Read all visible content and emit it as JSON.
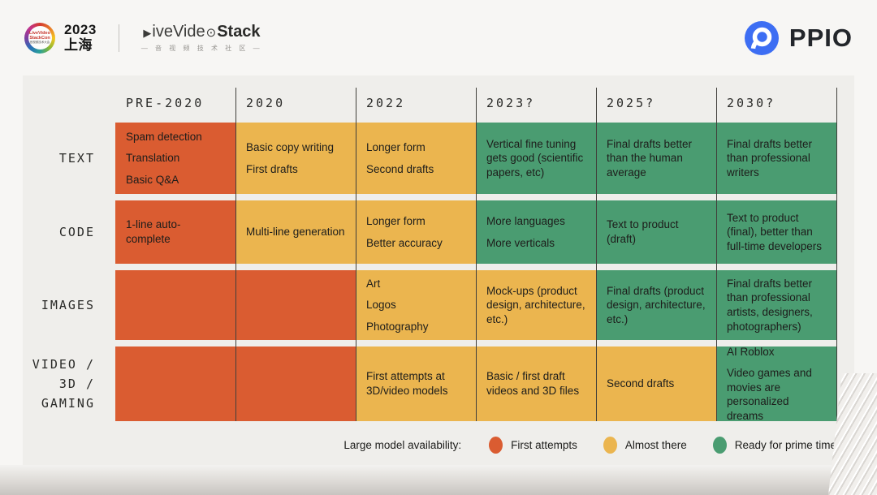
{
  "topbar": {
    "conference_badge": {
      "line1": "LiveVideo",
      "line2": "StackCon",
      "sub": "音视频技术大会"
    },
    "conference_year": "2023",
    "conference_city": "上海",
    "wordmark_play_icon": "▶",
    "wordmark_mid": "iveVide",
    "wordmark_o_icon": "⊙",
    "wordmark_bold": "Stack",
    "community_tagline": "— 音 视 频 技 术 社 区 —",
    "brand_name": "PPIO",
    "brand_color": "#3D6EF3"
  },
  "chart_data": {
    "type": "heatmap",
    "title": "Large model availability",
    "columns": [
      "PRE-2020",
      "2020",
      "2022",
      "2023?",
      "2025?",
      "2030?"
    ],
    "y_categories": [
      "TEXT",
      "CODE",
      "IMAGES",
      "VIDEO / 3D / GAMING"
    ],
    "status_colors": {
      "first_attempts": "#DA5C31",
      "almost_there": "#EBB54F",
      "prime_time": "#4A9C71"
    },
    "rows": [
      {
        "label_lines": [
          "TEXT"
        ],
        "cells": [
          {
            "status": "first_attempts",
            "lines": [
              "Spam detection",
              "Translation",
              "Basic Q&A"
            ]
          },
          {
            "status": "almost_there",
            "lines": [
              "Basic copy writing",
              "First drafts"
            ]
          },
          {
            "status": "almost_there",
            "lines": [
              "Longer form",
              "Second drafts"
            ]
          },
          {
            "status": "prime_time",
            "lines": [
              "Vertical fine tuning gets good (scientific papers, etc)"
            ]
          },
          {
            "status": "prime_time",
            "lines": [
              "Final drafts better than the human average"
            ]
          },
          {
            "status": "prime_time",
            "lines": [
              "Final drafts better than professional writers"
            ]
          }
        ]
      },
      {
        "label_lines": [
          "CODE"
        ],
        "cells": [
          {
            "status": "first_attempts",
            "lines": [
              "1-line auto-complete"
            ]
          },
          {
            "status": "almost_there",
            "lines": [
              "Multi-line generation"
            ]
          },
          {
            "status": "almost_there",
            "lines": [
              "Longer form",
              "Better accuracy"
            ]
          },
          {
            "status": "prime_time",
            "lines": [
              "More languages",
              "More verticals"
            ]
          },
          {
            "status": "prime_time",
            "lines": [
              "Text to product (draft)"
            ]
          },
          {
            "status": "prime_time",
            "lines": [
              "Text to product (final), better than full-time developers"
            ]
          }
        ]
      },
      {
        "label_lines": [
          "IMAGES"
        ],
        "cells": [
          {
            "status": "first_attempts",
            "lines": []
          },
          {
            "status": "first_attempts",
            "lines": []
          },
          {
            "status": "almost_there",
            "lines": [
              "Art",
              "Logos",
              "Photography"
            ]
          },
          {
            "status": "almost_there",
            "lines": [
              "Mock-ups (product design, architecture, etc.)"
            ]
          },
          {
            "status": "prime_time",
            "lines": [
              "Final drafts (product design, architecture, etc.)"
            ]
          },
          {
            "status": "prime_time",
            "lines": [
              "Final drafts better than professional artists, designers, photographers)"
            ]
          }
        ]
      },
      {
        "label_lines": [
          "VIDEO /",
          "3D /",
          "GAMING"
        ],
        "cells": [
          {
            "status": "first_attempts",
            "lines": []
          },
          {
            "status": "first_attempts",
            "lines": []
          },
          {
            "status": "almost_there",
            "lines": [
              "First attempts at 3D/video models"
            ]
          },
          {
            "status": "almost_there",
            "lines": [
              "Basic / first draft videos and 3D files"
            ]
          },
          {
            "status": "almost_there",
            "lines": [
              "Second drafts"
            ]
          },
          {
            "status": "prime_time",
            "lines": [
              "AI Roblox",
              "Video games and movies are personalized dreams"
            ]
          }
        ]
      }
    ],
    "legend": {
      "position": "bottom",
      "title": "Large model availability:",
      "items": [
        {
          "status": "first_attempts",
          "label": "First attempts"
        },
        {
          "status": "almost_there",
          "label": "Almost there"
        },
        {
          "status": "prime_time",
          "label": "Ready for prime time"
        }
      ]
    }
  }
}
